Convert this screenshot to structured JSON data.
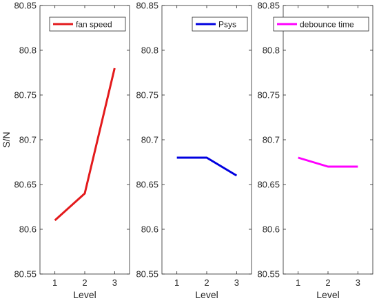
{
  "chart_data": [
    {
      "type": "line",
      "x": [
        1,
        2,
        3
      ],
      "xticks": [
        "1",
        "2",
        "3"
      ],
      "yticks": [
        "80.55",
        "80.6",
        "80.65",
        "80.7",
        "80.75",
        "80.8",
        "80.85"
      ],
      "xlim": [
        0.5,
        3.5
      ],
      "ylim": [
        80.55,
        80.85
      ],
      "xlabel": "Level",
      "ylabel": "S/N",
      "legend": "top-right",
      "series": [
        {
          "name": "fan speed",
          "values": [
            80.61,
            80.64,
            80.78
          ],
          "color": "#e31a1c"
        }
      ]
    },
    {
      "type": "line",
      "x": [
        1,
        2,
        3
      ],
      "xticks": [
        "1",
        "2",
        "3"
      ],
      "yticks": [
        "80.55",
        "80.6",
        "80.65",
        "80.7",
        "80.75",
        "80.8",
        "80.85"
      ],
      "xlim": [
        0.5,
        3.5
      ],
      "ylim": [
        80.55,
        80.85
      ],
      "xlabel": "Level",
      "ylabel": "",
      "legend": "top-right",
      "series": [
        {
          "name": "Psys",
          "values": [
            80.68,
            80.68,
            80.66
          ],
          "color": "#0000e0"
        }
      ]
    },
    {
      "type": "line",
      "x": [
        1,
        2,
        3
      ],
      "xticks": [
        "1",
        "2",
        "3"
      ],
      "yticks": [
        "80.55",
        "80.6",
        "80.65",
        "80.7",
        "80.75",
        "80.8",
        "80.85"
      ],
      "xlim": [
        0.5,
        3.5
      ],
      "ylim": [
        80.55,
        80.85
      ],
      "xlabel": "Level",
      "ylabel": "",
      "legend": "top-right",
      "series": [
        {
          "name": "debounce time",
          "values": [
            80.68,
            80.67,
            80.67
          ],
          "color": "#ff00ff"
        }
      ]
    }
  ]
}
